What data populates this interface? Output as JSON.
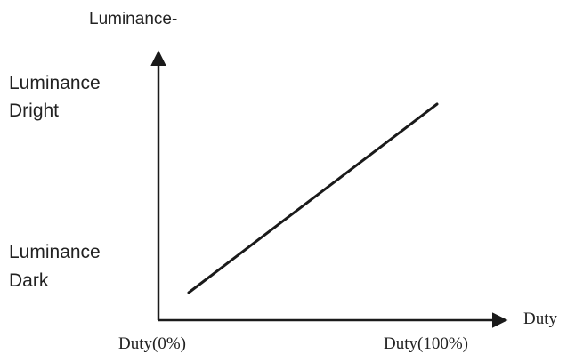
{
  "chart_data": {
    "type": "line",
    "ylabel": "Luminance-",
    "xlabel": "Duty",
    "y_tick_labels": {
      "top": [
        "Luminance",
        "Dright"
      ],
      "bottom": [
        "Luminance",
        "Dark"
      ]
    },
    "x_tick_labels": {
      "left": "Duty(0%)",
      "right": "Duty(100%)"
    },
    "x": [
      0,
      100
    ],
    "y": [
      0,
      1
    ],
    "xlim": [
      0,
      100
    ],
    "ylim": [
      0,
      1
    ],
    "line_color": "#1a1a1a",
    "axis_color": "#1a1a1a"
  }
}
